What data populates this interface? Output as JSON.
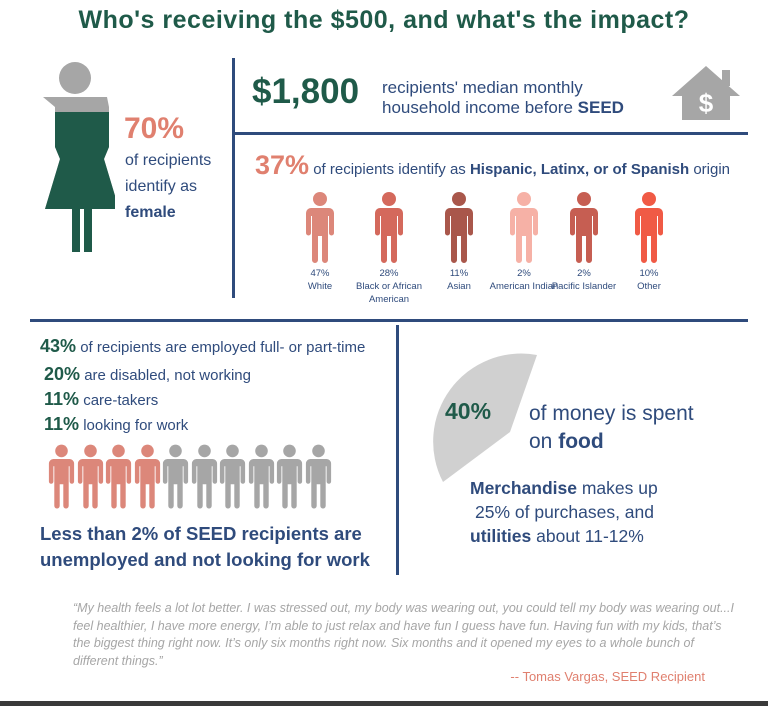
{
  "title": "Who's receiving the $500, and what's the impact?",
  "gender": {
    "percent": "70%",
    "line1": "of recipients",
    "line2": "identify as",
    "bold": "female"
  },
  "income": {
    "amount": "$1,800",
    "line1": "recipients' median monthly",
    "line2": "household income before ",
    "bold": "SEED",
    "icon": "house-dollar-icon"
  },
  "hispanic": {
    "percent": "37%",
    "text": " of recipients  identify as ",
    "bold": "Hispanic, Latinx, or of Spanish",
    "after": " origin"
  },
  "race": [
    {
      "percent": "47%",
      "label": "White",
      "color": "#dc877a"
    },
    {
      "percent": "28%",
      "label": "Black or African American",
      "color": "#d4695c"
    },
    {
      "percent": "11%",
      "label": "Asian",
      "color": "#a9574b"
    },
    {
      "percent": "2%",
      "label": "American Indian",
      "color": "#f6b1a6"
    },
    {
      "percent": "2%",
      "label": "Pacific Islander",
      "color": "#c65e52"
    },
    {
      "percent": "10%",
      "label": "Other",
      "color": "#f05a45"
    }
  ],
  "employment": [
    {
      "percent": "43%",
      "text": "of recipients are employed full- or part-time"
    },
    {
      "percent": "20%",
      "text": "are disabled, not working"
    },
    {
      "percent": "11%",
      "text": "care-takers"
    },
    {
      "percent": "11%",
      "text": "looking for work"
    }
  ],
  "people_highlighted": 4,
  "people_total": 10,
  "unemployed": {
    "line1": "Less than 2% of SEED recipients are",
    "line2": "unemployed and not looking for work"
  },
  "food": {
    "percent": "40%",
    "line1": "of money is spent",
    "line2": "on ",
    "bold": "food"
  },
  "merch": {
    "bold1": "Merchandise",
    "t1": " makes up",
    "t2": "25% of purchases, and",
    "bold2": "utilities",
    "t3": " about 11-12%"
  },
  "quote": "“My health feels a lot lot better. I was stressed out, my body was wearing out, you could tell my body was wearing out...I feel healthier, I have more energy, I’m able to just relax and have fun I guess have fun. Having fun with my kids, that’s the biggest thing right now.  It’s only six months right now. Six months and it opened my eyes to a whole bunch of different things.”",
  "attribution": "-- Tomas Vargas, SEED Recipient",
  "colors": {
    "green": "#1f5a49",
    "navy": "#2f4b7c",
    "salmon": "#e0806f",
    "gray": "#a6a6a6"
  }
}
